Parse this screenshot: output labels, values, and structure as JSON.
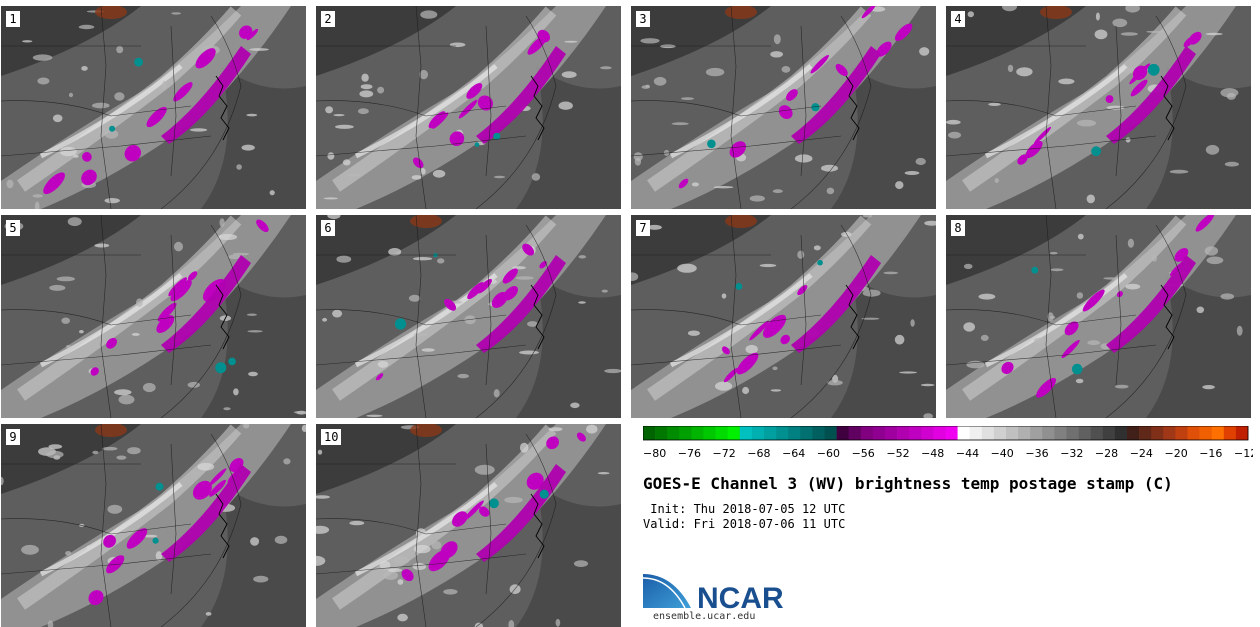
{
  "panels": [
    {
      "label": "1"
    },
    {
      "label": "2"
    },
    {
      "label": "3"
    },
    {
      "label": "4"
    },
    {
      "label": "5"
    },
    {
      "label": "6"
    },
    {
      "label": "7"
    },
    {
      "label": "8"
    },
    {
      "label": "9"
    },
    {
      "label": "10"
    }
  ],
  "colorbar": {
    "ticks": [
      "−80",
      "−76",
      "−72",
      "−68",
      "−64",
      "−60",
      "−56",
      "−52",
      "−48",
      "−44",
      "−40",
      "−36",
      "−32",
      "−28",
      "−24",
      "−20",
      "−16",
      "−12"
    ],
    "colors": [
      "#006400",
      "#007800",
      "#008c00",
      "#00a000",
      "#00b400",
      "#00c800",
      "#00dc00",
      "#00f000",
      "#00c0c0",
      "#00b0b0",
      "#00a0a0",
      "#009090",
      "#008080",
      "#007070",
      "#006060",
      "#005050",
      "#400040",
      "#600060",
      "#800080",
      "#900090",
      "#a000a0",
      "#b000b0",
      "#c000c0",
      "#d000d0",
      "#e000e0",
      "#f000f0",
      "#ffffff",
      "#f0f0f0",
      "#e0e0e0",
      "#d0d0d0",
      "#c0c0c0",
      "#b0b0b0",
      "#a0a0a0",
      "#909090",
      "#808080",
      "#707070",
      "#606060",
      "#505050",
      "#404040",
      "#303030",
      "#402018",
      "#602818",
      "#803018",
      "#a03818",
      "#c04010",
      "#e05008",
      "#f06000",
      "#ff7000",
      "#e04000",
      "#c02000"
    ]
  },
  "title": "GOES-E Channel 3 (WV) brightness temp postage stamp (C)",
  "init_line": " Init: Thu 2018-07-05 12 UTC",
  "valid_line": "Valid: Fri 2018-07-06 11 UTC",
  "logo_text": "NCAR",
  "site_url": "ensemble.ucar.edu"
}
